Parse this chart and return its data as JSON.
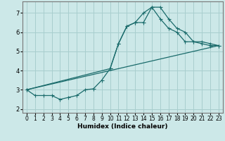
{
  "xlabel": "Humidex (Indice chaleur)",
  "background_color": "#cce8e8",
  "grid_color": "#a8cece",
  "line_color": "#1a6b6b",
  "xlim": [
    -0.5,
    23.5
  ],
  "ylim": [
    1.8,
    7.6
  ],
  "yticks": [
    2,
    3,
    4,
    5,
    6,
    7
  ],
  "xticks": [
    0,
    1,
    2,
    3,
    4,
    5,
    6,
    7,
    8,
    9,
    10,
    11,
    12,
    13,
    14,
    15,
    16,
    17,
    18,
    19,
    20,
    21,
    22,
    23
  ],
  "line1_x": [
    0,
    1,
    2,
    3,
    4,
    5,
    6,
    7,
    8,
    9,
    10,
    11,
    12,
    13,
    14,
    15,
    16,
    17,
    18,
    19,
    20,
    21,
    22,
    23
  ],
  "line1_y": [
    3.0,
    2.7,
    2.7,
    2.7,
    2.5,
    2.6,
    2.7,
    3.0,
    3.05,
    3.5,
    4.1,
    5.4,
    6.3,
    6.5,
    7.0,
    7.3,
    7.3,
    6.7,
    6.2,
    6.0,
    5.5,
    5.5,
    5.4,
    5.3
  ],
  "line2_x": [
    0,
    10,
    11,
    12,
    13,
    14,
    15,
    16,
    17,
    18,
    19,
    20,
    21,
    22,
    23
  ],
  "line2_y": [
    3.0,
    4.1,
    5.4,
    6.3,
    6.5,
    6.5,
    7.3,
    6.7,
    6.2,
    6.0,
    5.5,
    5.5,
    5.4,
    5.3,
    5.3
  ],
  "line3_x": [
    0,
    23
  ],
  "line3_y": [
    3.0,
    5.3
  ],
  "ylabel_size": 6.0,
  "xlabel_size": 6.5,
  "tick_size": 5.5
}
